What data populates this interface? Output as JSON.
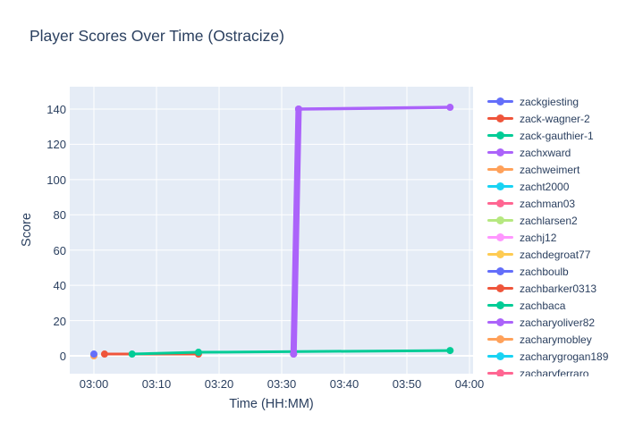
{
  "title": "Player Scores Over Time (Ostracize)",
  "colors": {
    "title_text": "#2a3f5f",
    "axis_text": "#2a3f5f",
    "paper_bg": "#ffffff",
    "plot_bg": "#e5ecf6",
    "grid": "#ffffff"
  },
  "chart_data": {
    "type": "line",
    "title": "Player Scores Over Time (Ostracize)",
    "xlabel": "Time (HH:MM)",
    "ylabel": "Score",
    "x_ticks": [
      {
        "label": "03:00",
        "t": 0
      },
      {
        "label": "03:10",
        "t": 10
      },
      {
        "label": "03:20",
        "t": 20
      },
      {
        "label": "03:30",
        "t": 30
      },
      {
        "label": "03:40",
        "t": 40
      },
      {
        "label": "03:50",
        "t": 50
      },
      {
        "label": "04:00",
        "t": 60
      }
    ],
    "y_ticks": [
      0,
      20,
      40,
      60,
      80,
      100,
      120,
      140
    ],
    "ylim": [
      -10,
      153
    ],
    "xlim_minutes": [
      -3.9,
      61.1
    ],
    "grid": true,
    "legend_position": "right",
    "series": [
      {
        "name": "zachweimert",
        "color": "#FFA15A",
        "width": 3,
        "marker_r": 4,
        "points": [
          {
            "time": "03:00",
            "t": 0,
            "score": 0
          }
        ]
      },
      {
        "name": "zackgiesting",
        "color": "#636EFA",
        "width": 3,
        "marker_r": 4,
        "points": [
          {
            "time": "03:00",
            "t": 0,
            "score": 1
          }
        ]
      },
      {
        "name": "zack-wagner-2",
        "color": "#EF553B",
        "width": 3,
        "marker_r": 4,
        "points": [
          {
            "time": "03:02",
            "t": 1.7,
            "score": 1
          },
          {
            "time": "03:17",
            "t": 16.7,
            "score": 1
          }
        ]
      },
      {
        "name": "zack-gauthier-1",
        "color": "#00CC96",
        "width": 3,
        "marker_r": 4,
        "points": [
          {
            "time": "03:06",
            "t": 6.1,
            "score": 1
          },
          {
            "time": "03:17",
            "t": 16.7,
            "score": 2
          },
          {
            "time": "03:57",
            "t": 56.9,
            "score": 3
          }
        ]
      },
      {
        "name": "zacharyoliver82",
        "color": "#AB63FA",
        "width": 7,
        "marker_r": 4,
        "points": [
          {
            "time": "03:32",
            "t": 31.9,
            "score": 1
          },
          {
            "time": "03:33",
            "t": 32.7,
            "score": 140
          }
        ]
      },
      {
        "name": "zachxward",
        "color": "#AB63FA",
        "width": 3.5,
        "marker_r": 4,
        "points": [
          {
            "time": "03:32",
            "t": 31.9,
            "score": 1
          },
          {
            "time": "03:33",
            "t": 32.7,
            "score": 140
          },
          {
            "time": "03:57",
            "t": 56.9,
            "score": 141
          }
        ]
      }
    ]
  },
  "legend": {
    "items": [
      {
        "label": "zackgiesting",
        "color": "#636EFA"
      },
      {
        "label": "zack-wagner-2",
        "color": "#EF553B"
      },
      {
        "label": "zack-gauthier-1",
        "color": "#00CC96"
      },
      {
        "label": "zachxward",
        "color": "#AB63FA"
      },
      {
        "label": "zachweimert",
        "color": "#FFA15A"
      },
      {
        "label": "zacht2000",
        "color": "#19D3F3"
      },
      {
        "label": "zachman03",
        "color": "#FF6692"
      },
      {
        "label": "zachlarsen2",
        "color": "#B6E880"
      },
      {
        "label": "zachj12",
        "color": "#FF97FF"
      },
      {
        "label": "zachdegroat77",
        "color": "#FECB52"
      },
      {
        "label": "zachboulb",
        "color": "#636EFA"
      },
      {
        "label": "zachbarker0313",
        "color": "#EF553B"
      },
      {
        "label": "zachbaca",
        "color": "#00CC96"
      },
      {
        "label": "zacharyoliver82",
        "color": "#AB63FA"
      },
      {
        "label": "zacharymobley",
        "color": "#FFA15A"
      },
      {
        "label": "zacharygrogan189",
        "color": "#19D3F3"
      },
      {
        "label": "zacharyferraro",
        "color": "#FF6692"
      }
    ]
  }
}
